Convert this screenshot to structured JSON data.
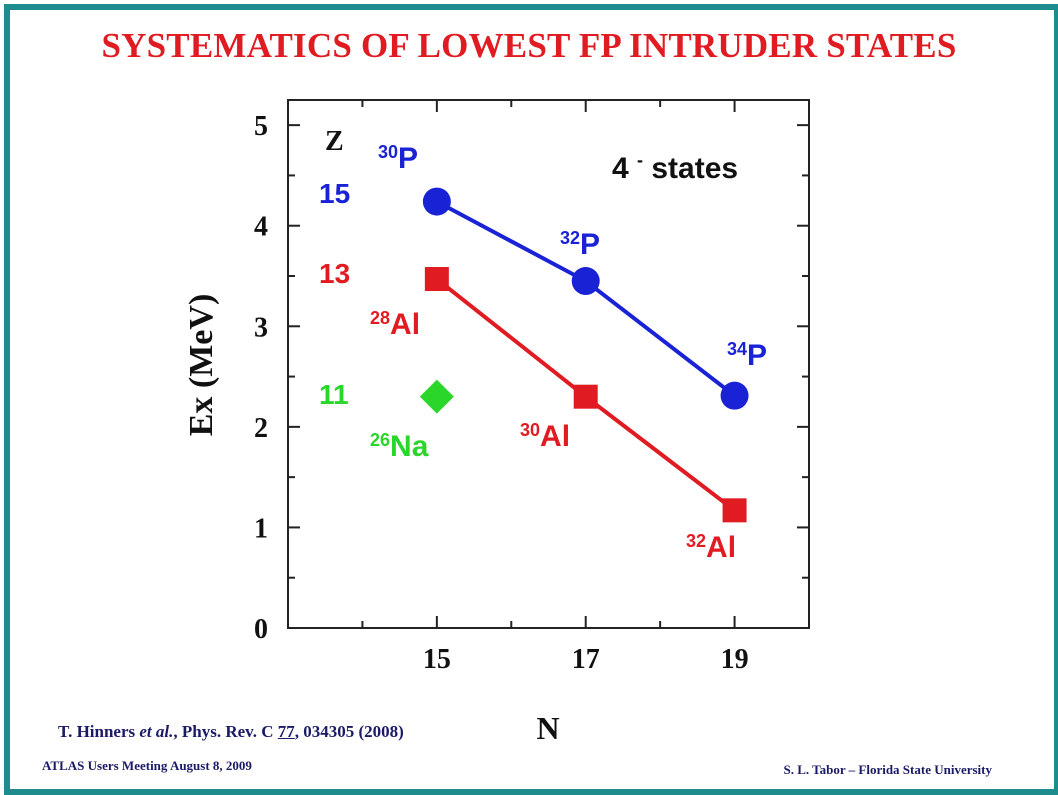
{
  "title": "SYSTEMATICS OF LOWEST FP INTRUDER STATES",
  "reference": {
    "authors": "T. Hinners ",
    "etal": "et al.",
    "journal": ", Phys. Rev. C ",
    "volume": "77",
    "rest": ", 034305 (2008)"
  },
  "footer": {
    "left": "ATLAS Users Meeting  August 8,  2009",
    "right": "S. L. Tabor – Florida State University"
  },
  "chart_data": {
    "type": "line",
    "xlabel": "N",
    "ylabel": "Ex (MeV)",
    "xlim": [
      13,
      20
    ],
    "ylim": [
      0,
      5.25
    ],
    "x_ticks": [
      "15",
      "17",
      "19"
    ],
    "y_ticks": [
      "0",
      "1",
      "2",
      "3",
      "4",
      "5"
    ],
    "annotation": {
      "main": "4",
      "sup": "-",
      "rest": " states"
    },
    "z_header": "Z",
    "series": [
      {
        "z_label": "15",
        "color": "#1a22d6",
        "marker": "circle",
        "x": [
          15,
          17,
          19
        ],
        "values": [
          4.24,
          3.45,
          2.31
        ],
        "isotopes": [
          {
            "mass": "30",
            "element": "P"
          },
          {
            "mass": "32",
            "element": "P"
          },
          {
            "mass": "34",
            "element": "P"
          }
        ]
      },
      {
        "z_label": "13",
        "color": "#e11b22",
        "marker": "square",
        "x": [
          15,
          17,
          19
        ],
        "values": [
          3.47,
          2.3,
          1.17
        ],
        "isotopes": [
          {
            "mass": "28",
            "element": "Al"
          },
          {
            "mass": "30",
            "element": "Al"
          },
          {
            "mass": "32",
            "element": "Al"
          }
        ]
      },
      {
        "z_label": "11",
        "color": "#2ad62a",
        "marker": "diamond",
        "x": [
          15
        ],
        "values": [
          2.3
        ],
        "isotopes": [
          {
            "mass": "26",
            "element": "Na"
          }
        ]
      }
    ]
  }
}
